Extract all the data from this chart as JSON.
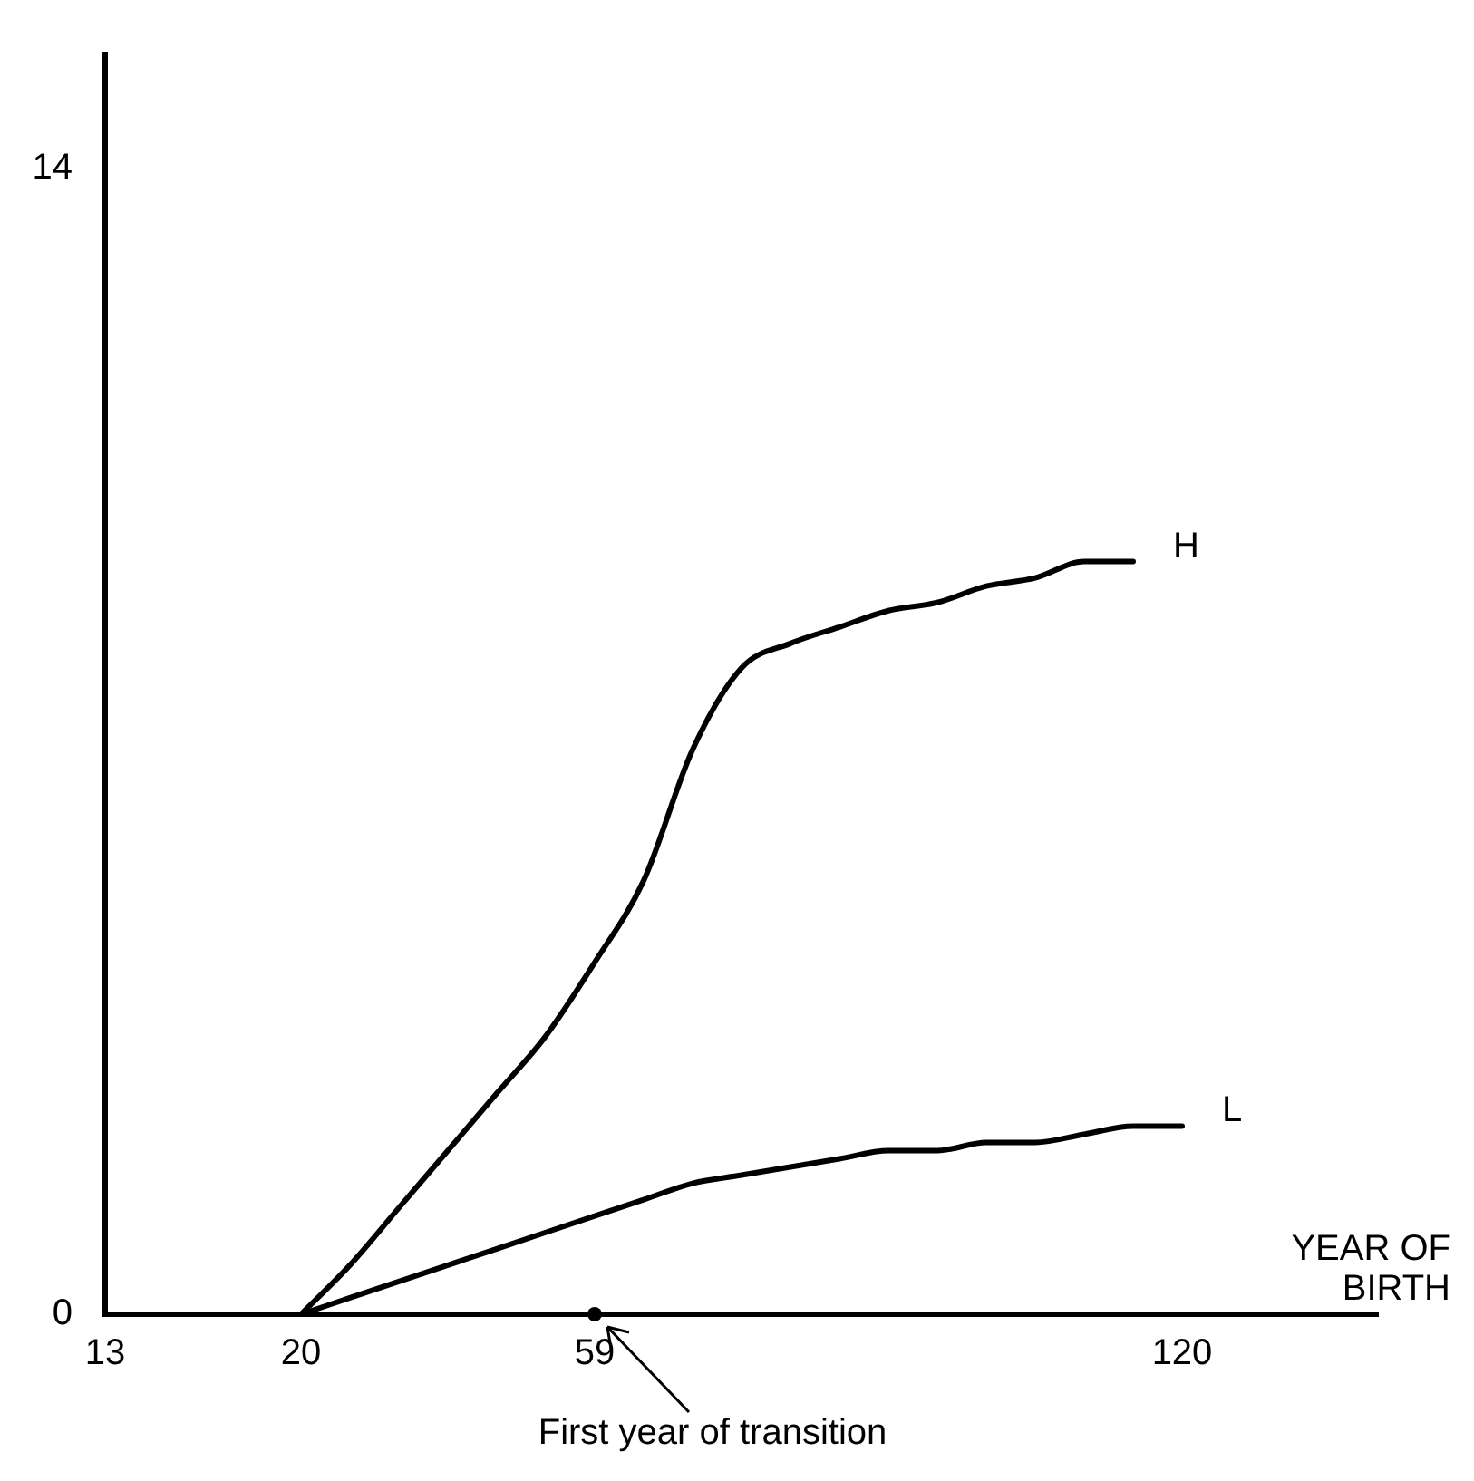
{
  "chart_data": {
    "type": "line",
    "xlabel": "YEAR OF BIRTH",
    "categories": [
      "13",
      null,
      null,
      null,
      "20",
      null,
      null,
      null,
      null,
      null,
      "59",
      null,
      null,
      null,
      null,
      null,
      null,
      null,
      null,
      null,
      null,
      null,
      "120",
      null,
      null,
      null,
      null
    ],
    "series": [
      {
        "name": "H",
        "color": "#000000",
        "values": [
          null,
          null,
          null,
          null,
          0,
          0.6,
          1.3,
          2.0,
          2.7,
          3.4,
          4.3,
          5.3,
          6.9,
          7.9,
          8.2,
          8.4,
          8.6,
          8.7,
          8.9,
          9.0,
          9.2,
          9.2,
          null,
          null,
          null,
          null,
          null
        ]
      },
      {
        "name": "L",
        "color": "#000000",
        "values": [
          null,
          null,
          null,
          null,
          0,
          0.2,
          0.4,
          0.6,
          0.8,
          1.0,
          1.2,
          1.4,
          1.6,
          1.7,
          1.8,
          1.9,
          2.0,
          2.0,
          2.1,
          2.1,
          2.2,
          2.3,
          2.3,
          null,
          null,
          null,
          null
        ]
      }
    ],
    "ylim": [
      0,
      15.4
    ],
    "yticks": [
      0,
      14
    ],
    "grid": false,
    "legend": false,
    "marker": "none",
    "line_style": "solid",
    "annotations": [
      {
        "text": "First year of transition",
        "x": "59",
        "y": 0
      }
    ]
  }
}
